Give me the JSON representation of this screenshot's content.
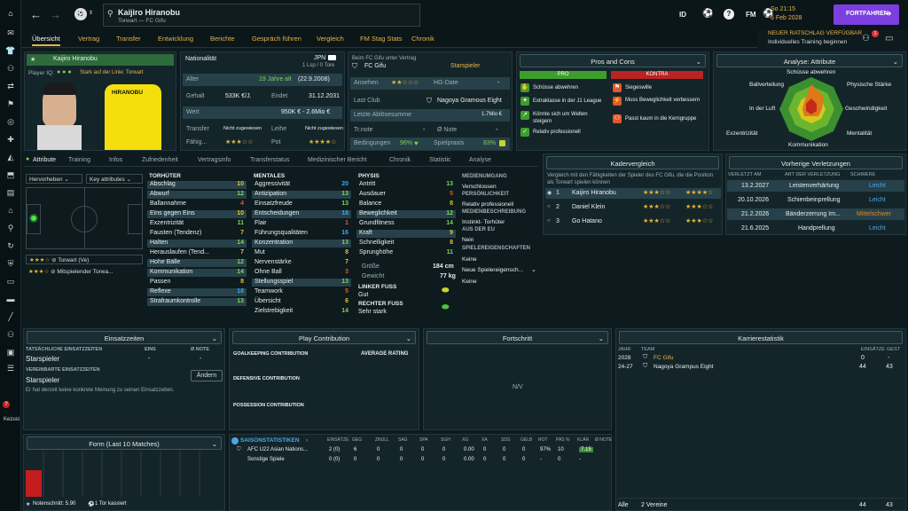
{
  "header": {
    "player_name": "Kaijiro Hiranobu",
    "subtitle": "Torwart — FC Gifu",
    "id_label": "ID",
    "fm_label": "FM",
    "date_day": "So 21:15",
    "date": "6 Feb 2028",
    "continue": "FORTFAHREN",
    "tip_title": "NEUER RATSCHLAG VERFÜGBAR",
    "tip_text": "Individuelles Training beginnen"
  },
  "nav": [
    "Übersicht",
    "Vertrag",
    "Transfer",
    "Entwicklung",
    "Berichte",
    "Gespräch führen",
    "Vergleich",
    "FM Stag Stats",
    "Chronik"
  ],
  "card": {
    "name": "Kaijiro Hiranobu",
    "iq_label": "Player IQ:",
    "role_text": "Stark auf der Linie: Torwart",
    "shirt_name": "HIRANOBU"
  },
  "info": {
    "nat_label": "Nationalität",
    "nat_val": "JPN",
    "nat_sub": "1 Lsp / 0 Tore",
    "alter_label": "Alter",
    "alter_val": "19 Jahre alt",
    "alter_date": "(22.9.2008)",
    "gehalt_label": "Gehalt",
    "gehalt_val": "533K €/J.",
    "ende_label": "Endet",
    "ende_val": "31.12.2031",
    "wert_label": "Wert",
    "wert_val": "950K € - 2.6Mio €",
    "transfer_label": "Transfer",
    "transfer_val": "Nicht zugewiesen",
    "leihe_label": "Leihe",
    "leihe_val": "Nicht zugewiesen",
    "faehig_label": "Fähig...",
    "pot_label": "Pot"
  },
  "club": {
    "line1": "Beim FC Gifu unter Vertrag",
    "club": "FC Gifu",
    "status": "Starspieler",
    "ansehen_label": "Ansehen",
    "hg_label": "HG-Date",
    "hg_val": "-",
    "last_club_label": "Last Club",
    "last_club_val": "Nagoya Gramous Eight",
    "abloese_label": "Letzte Ablösesumme",
    "abloese_val": "1.7Mio €",
    "trnote_label": "Tr.note",
    "trnote_val": "-",
    "note_label": "Ø Note",
    "note_val": "-",
    "bed_label": "Bedingungen",
    "bed_val": "96%",
    "praxis_label": "Spielpraxis",
    "praxis_val": "83%"
  },
  "pros": {
    "title": "Pros and Cons",
    "pro": "PRO",
    "contra": "KONTRA",
    "pro_items": [
      "Schüsse abwehren",
      "Extraklasse in der J1 League",
      "Könnte sich um Welten steigern",
      "Relativ professionell"
    ],
    "contra_items": [
      "Siegeswille",
      "Muss Beweglichkeit verbessern",
      "Passt kaum in die Kerngruppe"
    ]
  },
  "radar": {
    "title": "Analyse: Attribute",
    "labels": [
      "Schüsse abwehren",
      "Physische Stärke",
      "Geschwindigkeit",
      "Mentalität",
      "Kommunikation",
      "Exzentrizität",
      "In der Luft",
      "Ballverteilung"
    ]
  },
  "tabs": [
    "Attribute",
    "Training",
    "Infos",
    "Zufriedenheit",
    "Vertragsinfo",
    "Transferstatus",
    "Medizinischer Bericht",
    "Chronik",
    "Statistic",
    "Analyse"
  ],
  "pitch": {
    "dropdown1": "Hervorheben",
    "dropdown2": "Key attributes",
    "role1": "Torwart (Ve)",
    "role2": "Mitspielender Torwa..."
  },
  "attr": {
    "tw_title": "TORHÜTER",
    "tw": [
      [
        "Abschlag",
        "10"
      ],
      [
        "Abwurf",
        "12"
      ],
      [
        "Ballannahme",
        "4"
      ],
      [
        "Eins gegen Eins",
        "10"
      ],
      [
        "Exzentrizität",
        "11"
      ],
      [
        "Fausten (Tendenz)",
        "7"
      ],
      [
        "Halten",
        "14"
      ],
      [
        "Herauslaufen (Tend...",
        "7"
      ],
      [
        "Hohe Bälle",
        "12"
      ],
      [
        "Kommunikation",
        "14"
      ],
      [
        "Passen",
        "8"
      ],
      [
        "Reflexe",
        "18"
      ],
      [
        "Strafraumkontrolle",
        "13"
      ]
    ],
    "ment_title": "MENTALES",
    "ment": [
      [
        "Aggressivität",
        "20"
      ],
      [
        "Antizipation",
        "13"
      ],
      [
        "Einsatzfreude",
        "13"
      ],
      [
        "Entscheidungen",
        "18"
      ],
      [
        "Flair",
        "1"
      ],
      [
        "Führungsqualitäten",
        "16"
      ],
      [
        "Konzentration",
        "13"
      ],
      [
        "Mut",
        "8"
      ],
      [
        "Nervenstärke",
        "7"
      ],
      [
        "Ohne Ball",
        "3"
      ],
      [
        "Stellungsspiel",
        "13"
      ],
      [
        "Teamwork",
        "5"
      ],
      [
        "Übersicht",
        "6"
      ],
      [
        "Zielstrebigkeit",
        "14"
      ]
    ],
    "phys_title": "PHYSIS",
    "phys": [
      [
        "Antritt",
        "13"
      ],
      [
        "Ausdauer",
        "5"
      ],
      [
        "Balance",
        "8"
      ],
      [
        "Beweglichkeit",
        "12"
      ],
      [
        "Grundfitness",
        "14"
      ],
      [
        "Kraft",
        "9"
      ],
      [
        "Schnelligkeit",
        "8"
      ],
      [
        "Sprunghöhe",
        "11"
      ]
    ],
    "groesse_label": "Größe",
    "groesse_val": "184 cm",
    "gewicht_label": "Gewicht",
    "gewicht_val": "77 kg",
    "lf_label": "LINKER FUSS",
    "lf_val": "Gut",
    "rf_label": "RECHTER FUSS",
    "rf_val": "Sehr stark"
  },
  "medien": {
    "t1": "MEDIENUMGANG",
    "v1": "Verschlossen",
    "t2": "PERSÖNLICHKEIT",
    "v2": "Relativ professionell",
    "t3": "MEDIENBESCHREIBUNG",
    "v3": "Instinkt- Torhüter",
    "t4": "AUS DER EU",
    "v4": "Nein",
    "t5": "SPIELEREIGENSCHAFTEN",
    "v5": "Keine",
    "d": "Neue Spielereigensch...",
    "v6": "Keine"
  },
  "kader": {
    "title": "Kadervergleich",
    "text": "Vergleich mit den Fähigkeiten der Spieler des FC Gifu, die die Position als Torwart spielen können",
    "rows": [
      [
        "1",
        "Kaijiro Hiranobu"
      ],
      [
        "2",
        "Daniel Klein"
      ],
      [
        "3",
        "Go Hatano"
      ]
    ]
  },
  "inj": {
    "title": "Vorherige Verletzungen",
    "h1": "VERLETZT AM",
    "h2": "ART DER VERLETZUNG",
    "h3": "SCHWERE",
    "rows": [
      [
        "13.2.2027",
        "Leistenverhärtung",
        "Leicht"
      ],
      [
        "20.10.2026",
        "Schienbeinprellung",
        "Leicht"
      ],
      [
        "21.2.2026",
        "Bänderzerrung Im...",
        "Mittelschwer"
      ],
      [
        "21.6.2025",
        "Handprellung",
        "Leicht"
      ]
    ]
  },
  "einsatz": {
    "title": "Einsatzzeiten",
    "h1": "TATSÄCHLICHE EINSATZZEITEN",
    "h2": "EINS",
    "h3": "Ø NOTE",
    "v1": "Starspieler",
    "v2": "-",
    "v3": "-",
    "h4": "VEREINBARTE EINSATZZEITEN",
    "v4": "Starspieler",
    "btn": "Ändern",
    "note": "Er hat derzeit keine konkrete Meinung zu seinen Einsatzzeiten."
  },
  "play": {
    "title": "Play Contribution",
    "gk": "GOALKEEPING CONTRIBUTION",
    "avg": "AVERAGE RATING",
    "def": "DEFENSIVE CONTRIBUTION",
    "pos": "POSSESSION CONTRIBUTION"
  },
  "fort": {
    "title": "Fortschritt",
    "nv": "N/V"
  },
  "karriere": {
    "title": "Karrierestatistik",
    "h1": "JAHR",
    "h2": "TEAM",
    "h3": "EINSÄTZE",
    "h4": "GEST",
    "rows": [
      [
        "2028",
        "FC Gifu",
        "0",
        "-"
      ],
      [
        "24-27",
        "Nagoya Grampus Eight",
        "44",
        "43"
      ]
    ],
    "total_label": "Alle",
    "total_teams": "2 Vereine",
    "total_eins": "44",
    "total_gest": "43"
  },
  "form": {
    "title": "Form (Last 10 Matches)",
    "note": "Notenschnitt: 5.90",
    "goals": "1 Tor kassiert"
  },
  "saison": {
    "title": "SAISONSTATISTIKEN",
    "heads": [
      "EINSÄTZE",
      "GEG",
      "ZNULL",
      "SAG",
      "SPA",
      "SGH",
      "XG",
      "XA",
      "SDS",
      "GELB",
      "ROT",
      "PAS %",
      "KLÄR",
      "Ø NOTE"
    ],
    "rows": [
      [
        "AFC U22 Asian Nations...",
        "2 (0)",
        "6",
        "0",
        "0",
        "0",
        "0",
        "0.00",
        "0",
        "0",
        "0",
        "97%",
        "10",
        "7.15"
      ],
      [
        "Sonstige Spiele",
        "0 (0)",
        "0",
        "0",
        "0",
        "0",
        "0",
        "0.00",
        "0",
        "0",
        "0",
        "-",
        "0",
        "-"
      ]
    ]
  },
  "kezusi": "Kezusi"
}
